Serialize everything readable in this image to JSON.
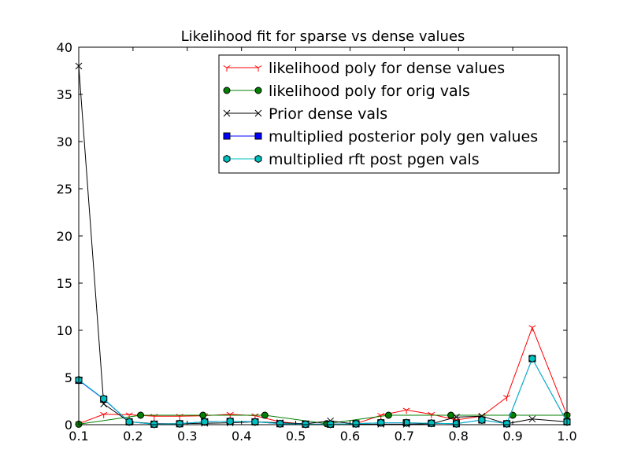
{
  "chart_data": {
    "type": "line",
    "title": "Likelihood fit for sparse vs dense values",
    "xlabel": "",
    "ylabel": "",
    "xlim": [
      0.1,
      1.0
    ],
    "ylim": [
      0,
      40
    ],
    "xticks": [
      "0.1",
      "0.2",
      "0.3",
      "0.4",
      "0.5",
      "0.6",
      "0.7",
      "0.8",
      "0.9",
      "1.0"
    ],
    "yticks": [
      "0",
      "5",
      "10",
      "15",
      "20",
      "25",
      "30",
      "35",
      "40"
    ],
    "grid": false,
    "legend_position": "top-right",
    "series": [
      {
        "name": "likelihood poly for dense values",
        "color": "#ff0000",
        "marker": "tri_down",
        "x": [
          0.1,
          0.146,
          0.193,
          0.239,
          0.286,
          0.332,
          0.379,
          0.425,
          0.471,
          0.518,
          0.564,
          0.611,
          0.657,
          0.704,
          0.75,
          0.796,
          0.843,
          0.889,
          0.936,
          1.0
        ],
        "y": [
          0.1,
          1.1,
          1.05,
          0.9,
          0.9,
          0.95,
          1.1,
          0.95,
          0.3,
          0.05,
          0.05,
          0.1,
          1.0,
          1.55,
          1.1,
          0.5,
          0.9,
          2.9,
          10.3,
          1.0
        ]
      },
      {
        "name": "likelihood poly for orig vals",
        "color": "#008000",
        "marker": "circle",
        "x": [
          0.1,
          0.214,
          0.329,
          0.443,
          0.557,
          0.671,
          0.786,
          0.9,
          1.0
        ],
        "y": [
          0.05,
          1.0,
          1.0,
          1.0,
          0.1,
          1.0,
          1.0,
          1.0,
          1.0
        ]
      },
      {
        "name": "Prior dense vals",
        "color": "#000000",
        "marker": "x",
        "x": [
          0.1,
          0.146,
          0.193,
          0.239,
          0.286,
          0.332,
          0.379,
          0.425,
          0.471,
          0.518,
          0.564,
          0.611,
          0.657,
          0.704,
          0.75,
          0.796,
          0.843,
          0.889,
          0.936,
          1.0
        ],
        "y": [
          38,
          2.2,
          0.3,
          0.1,
          0.1,
          0.15,
          0.2,
          0.3,
          0.2,
          0.1,
          0.4,
          0.05,
          0.05,
          0.05,
          0.1,
          0.8,
          0.9,
          0.1,
          0.6,
          0.3
        ]
      },
      {
        "name": "multiplied posterior poly gen values",
        "color": "#0000ff",
        "marker": "square",
        "x": [
          0.1,
          0.146,
          0.193,
          0.239,
          0.286,
          0.332,
          0.379,
          0.425,
          0.471,
          0.518,
          0.564,
          0.611,
          0.657,
          0.704,
          0.75,
          0.796,
          0.843,
          0.889,
          0.936,
          1.0
        ],
        "y": [
          4.7,
          2.7,
          0.3,
          0.05,
          0.1,
          0.3,
          0.35,
          0.3,
          0.1,
          0.05,
          0.05,
          0.1,
          0.2,
          0.2,
          0.15,
          0.1,
          0.5,
          0.1,
          7.0,
          0.3
        ]
      },
      {
        "name": "multiplied rft post pgen vals",
        "color": "#00bfbf",
        "marker": "hexagon",
        "x": [
          0.1,
          0.146,
          0.193,
          0.239,
          0.286,
          0.332,
          0.379,
          0.425,
          0.471,
          0.518,
          0.564,
          0.611,
          0.657,
          0.704,
          0.75,
          0.796,
          0.843,
          0.889,
          0.936,
          1.0
        ],
        "y": [
          4.75,
          2.75,
          0.3,
          0.05,
          0.1,
          0.3,
          0.35,
          0.3,
          0.1,
          0.05,
          0.05,
          0.1,
          0.2,
          0.2,
          0.15,
          0.1,
          0.5,
          0.1,
          7.0,
          0.3
        ]
      }
    ]
  }
}
